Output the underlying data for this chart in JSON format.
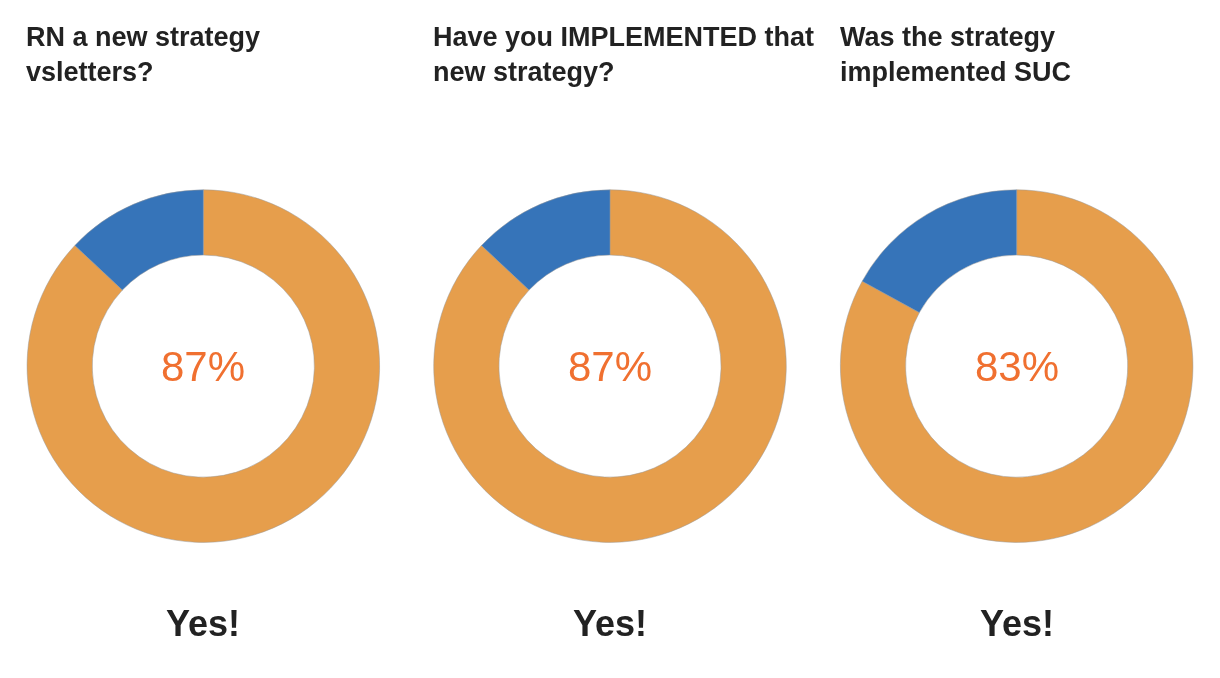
{
  "chart_data": [
    {
      "type": "donut",
      "title": "RN a new strategy\nvsletters?",
      "categories": [
        null,
        null
      ],
      "values": [
        87,
        13
      ],
      "colors": [
        "#e69e4c",
        "#3674b9"
      ],
      "annotations": [
        "87%",
        "Yes!"
      ]
    },
    {
      "type": "donut",
      "title": "Have you IMPLEMENTED that\nnew strategy?",
      "categories": [
        null,
        null
      ],
      "values": [
        87,
        13
      ],
      "colors": [
        "#e69e4c",
        "#3674b9"
      ],
      "annotations": [
        "87%",
        "Yes!"
      ]
    },
    {
      "type": "donut",
      "title": "Was the strategy\nimplemented SUC",
      "categories": [
        null,
        null
      ],
      "values": [
        83,
        17
      ],
      "colors": [
        "#e69e4c",
        "#3674b9"
      ],
      "annotations": [
        "83%",
        "Yes!"
      ]
    }
  ]
}
